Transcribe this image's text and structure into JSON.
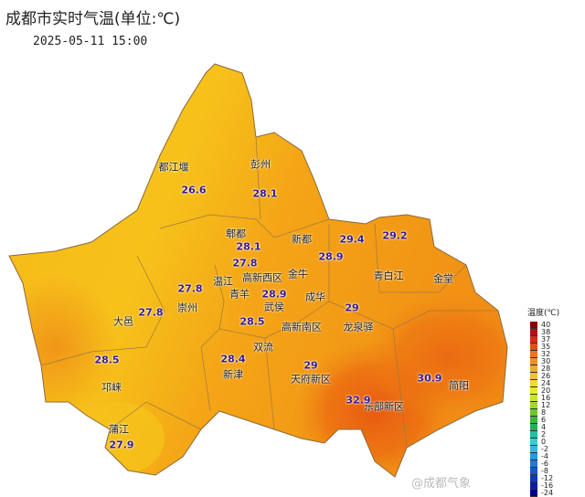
{
  "title": "成都市实时气温(单位:℃)",
  "timestamp": "2025-05-11  15:00",
  "watermark": "@成都气象",
  "colors": {
    "cool": "#f6c21a",
    "warm": "#f39a14",
    "hot": "#ec6e12",
    "border": "#9a6a2a"
  },
  "legend": {
    "title": "温度(℃)",
    "ticks": [
      "40",
      "38",
      "37",
      "35",
      "32",
      "30",
      "28",
      "26",
      "24",
      "20",
      "16",
      "12",
      "8",
      "6",
      "4",
      "2",
      "0",
      "-2",
      "-4",
      "-6",
      "-8",
      "-12",
      "-16",
      "-24"
    ],
    "colors": [
      "#8b0000",
      "#b0101a",
      "#d8281a",
      "#e84a1a",
      "#ee7220",
      "#f09028",
      "#f2a830",
      "#f2c030",
      "#f0dc30",
      "#e4ec28",
      "#c8e428",
      "#a0d828",
      "#6cc828",
      "#3cb838",
      "#20b060",
      "#20c0a0",
      "#30d0d8",
      "#30b8e8",
      "#2898e0",
      "#2078d8",
      "#1858c8",
      "#1038b8",
      "#0820a0",
      "#000080"
    ]
  },
  "districts": [
    {
      "name": "都江堰",
      "value": "26.6"
    },
    {
      "name": "彭州",
      "value": "28.1"
    },
    {
      "name": "郫都",
      "value": "28.1"
    },
    {
      "name": "新都",
      "value": "28.9"
    },
    {
      "name": "青白江",
      "value": "29.4"
    },
    {
      "name": "金堂",
      "value": "29.2"
    },
    {
      "name": "温江",
      "value": "27.8"
    },
    {
      "name": "崇州",
      "value": "27.8"
    },
    {
      "name": "大邑",
      "value": "27.8"
    },
    {
      "name": "青羊",
      "value": "28.9"
    },
    {
      "name": "武侯",
      "value": "28.5"
    },
    {
      "name": "龙泉驿",
      "value": "29"
    },
    {
      "name": "新津",
      "value": "28.4"
    },
    {
      "name": "邛崃",
      "value": "28.5"
    },
    {
      "name": "蒲江",
      "value": "27.9"
    },
    {
      "name": "天府新区",
      "value": "29"
    },
    {
      "name": "东部新区",
      "value": "32.9"
    },
    {
      "name": "简阳",
      "value": "30.9"
    }
  ],
  "extra_labels": [
    "高新西区",
    "金牛",
    "成华",
    "高新南区",
    "双流"
  ]
}
